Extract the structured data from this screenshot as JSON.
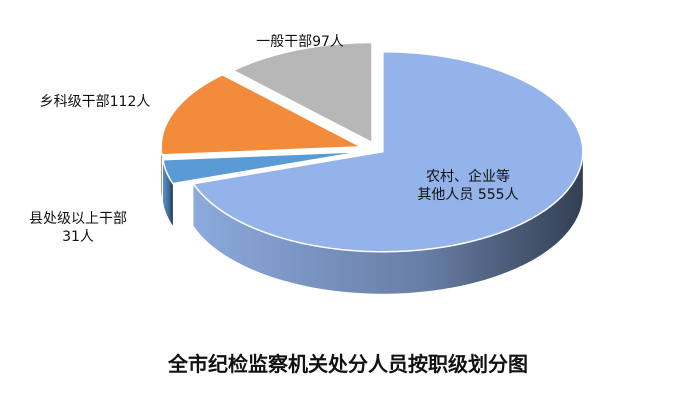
{
  "chart_data": {
    "type": "pie",
    "title": "全市纪检监察机关处分人员按职级划分图",
    "values": [
      555,
      31,
      112,
      97
    ],
    "value_labels": [
      "农村、企业等\n其他人员 555人",
      "县处级以上干部\n31人",
      "乡科级干部112人",
      "一般干部97人"
    ],
    "colors": [
      "#93b3ea",
      "#5b9bd5",
      "#f28b3c",
      "#b7b7b7"
    ],
    "three_d": true
  }
}
